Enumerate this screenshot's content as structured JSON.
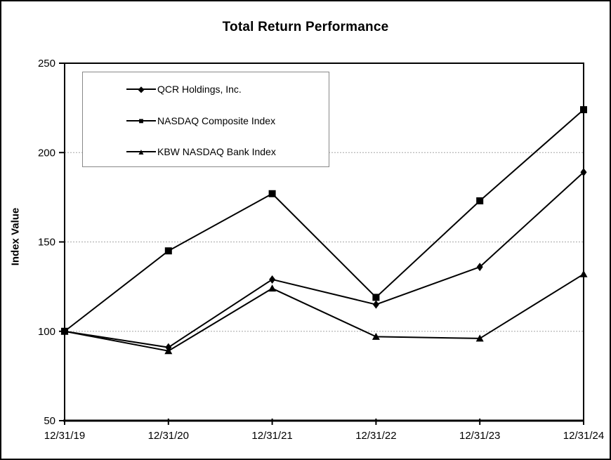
{
  "page": {
    "background": "#ffffff",
    "outer_border_color": "#000000",
    "legend_border_color": "#888888",
    "gridline_color": "#a6a6a6",
    "series_color": "#000000"
  },
  "chart_data": {
    "type": "line",
    "title": "Total Return Performance",
    "xlabel": "",
    "ylabel": "Index Value",
    "ylim": [
      50,
      250
    ],
    "yticks": [
      50,
      100,
      150,
      200,
      250
    ],
    "gridlines_at": [
      100,
      150,
      200
    ],
    "grid_style": "horizontal dotted gray",
    "legend_position": "top-left inside plot",
    "categories": [
      "12/31/19",
      "12/31/20",
      "12/31/21",
      "12/31/22",
      "12/31/23",
      "12/31/24"
    ],
    "series": [
      {
        "name": "QCR Holdings, Inc.",
        "marker": "diamond",
        "color": "#000000",
        "values": [
          100,
          91,
          129,
          115,
          136,
          189
        ]
      },
      {
        "name": "NASDAQ Composite Index",
        "marker": "square",
        "color": "#000000",
        "values": [
          100,
          145,
          177,
          119,
          173,
          224
        ]
      },
      {
        "name": "KBW NASDAQ Bank Index",
        "marker": "triangle",
        "color": "#000000",
        "values": [
          100,
          89,
          124,
          97,
          96,
          132
        ]
      }
    ]
  }
}
